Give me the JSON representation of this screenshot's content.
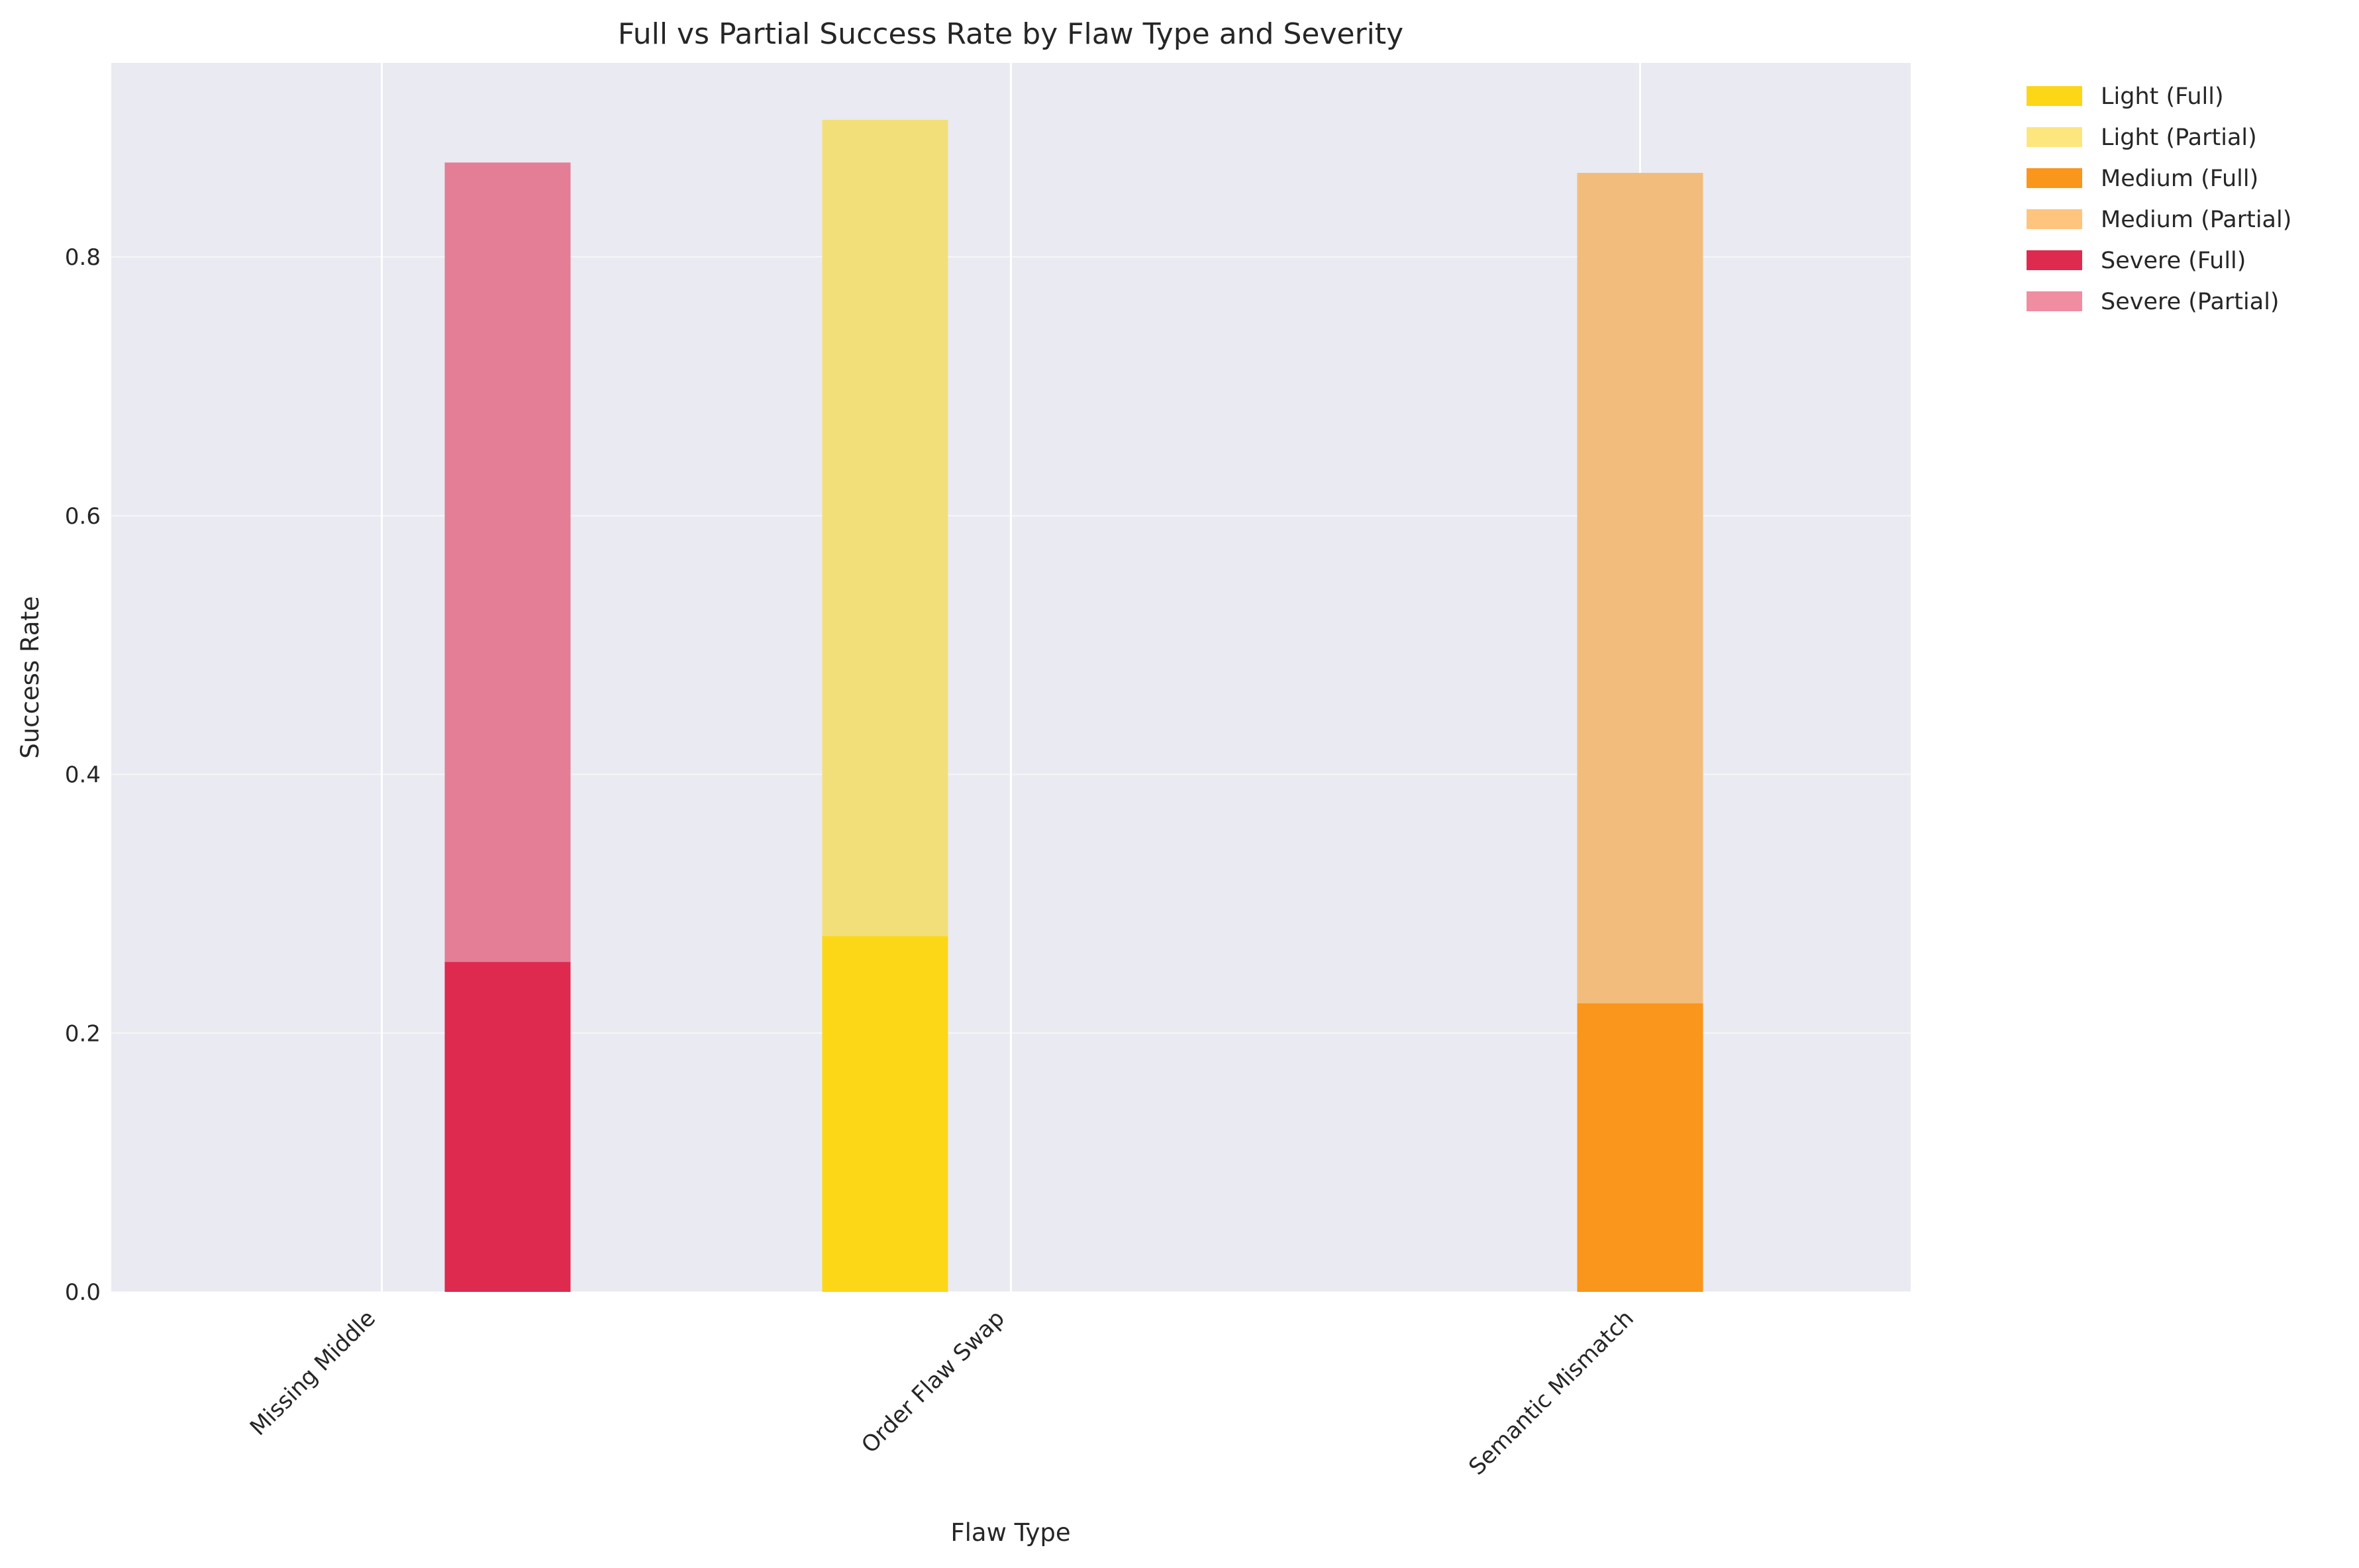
{
  "chart_data": {
    "type": "bar",
    "title": "Full vs Partial Success Rate by Flaw Type and Severity",
    "xlabel": "Flaw Type",
    "ylabel": "Success Rate",
    "ylim": [
      0,
      0.95
    ],
    "yticks": [
      0.0,
      0.2,
      0.4,
      0.6,
      0.8
    ],
    "ytick_labels": [
      "0.0",
      "0.2",
      "0.4",
      "0.6",
      "0.8"
    ],
    "categories": [
      "Missing Middle",
      "Order Flaw Swap",
      "Semantic Mismatch"
    ],
    "grid": true,
    "legend_position": "outside-top-right",
    "severity_order": [
      "Light",
      "Medium",
      "Severe"
    ],
    "bars": [
      {
        "category": "Missing Middle",
        "severity": "Severe",
        "full": 0.255,
        "partial": 0.873
      },
      {
        "category": "Order Flaw Swap",
        "severity": "Light",
        "full": 0.275,
        "partial": 0.906
      },
      {
        "category": "Semantic Mismatch",
        "severity": "Medium",
        "full": 0.223,
        "partial": 0.865
      }
    ],
    "colors": {
      "Light": {
        "full": "#FCD717",
        "partial": "#F2DF7A",
        "legend_partial": "#FDE67E"
      },
      "Medium": {
        "full": "#FA961B",
        "partial": "#F2BD7C",
        "legend_partial": "#FFC57F"
      },
      "Severe": {
        "full": "#DE2A4F",
        "partial": "#E37E96",
        "legend_partial": "#F08DA0"
      }
    },
    "legend": [
      {
        "label": "Light (Full)",
        "severity": "Light",
        "kind": "full"
      },
      {
        "label": "Light (Partial)",
        "severity": "Light",
        "kind": "partial"
      },
      {
        "label": "Medium (Full)",
        "severity": "Medium",
        "kind": "full"
      },
      {
        "label": "Medium (Partial)",
        "severity": "Medium",
        "kind": "partial"
      },
      {
        "label": "Severe (Full)",
        "severity": "Severe",
        "kind": "full"
      },
      {
        "label": "Severe (Partial)",
        "severity": "Severe",
        "kind": "partial"
      }
    ],
    "plot_background": "#EAEAF2",
    "grid_color": "#ffffff"
  }
}
